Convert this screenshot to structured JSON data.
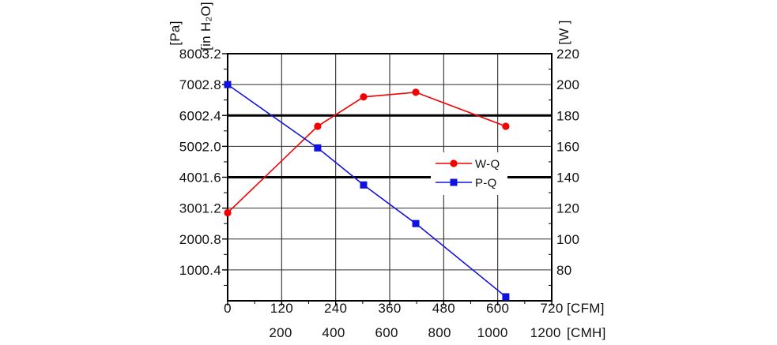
{
  "chart_data": {
    "type": "line",
    "title": "",
    "grid": true,
    "x_axis": {
      "unit": "[CFM]",
      "range": [
        0,
        720
      ],
      "ticks": [
        "0",
        "120",
        "240",
        "360",
        "480",
        "600",
        "720"
      ],
      "minor_step": 60
    },
    "x_axis_secondary": {
      "unit": "[CMH]",
      "ticks": [
        "200",
        "400",
        "600",
        "800",
        "1000",
        "1200"
      ],
      "cfm_per_cmh": 0.58858
    },
    "y_axis_left_pa": {
      "unit": "[Pa]",
      "range": [
        0,
        800
      ],
      "ticks": [
        "800",
        "700",
        "600",
        "500",
        "400",
        "300",
        "200",
        "100"
      ],
      "minor_step": 50
    },
    "y_axis_left_inh2o": {
      "unit": "[in H₂O]",
      "ticks": [
        "3.2",
        "2.8",
        "2.4",
        "2.0",
        "1.6",
        "1.2",
        "0.8",
        "0.4"
      ]
    },
    "y_axis_right_w": {
      "unit": "[W ]",
      "range": [
        60,
        220
      ],
      "ticks": [
        "220",
        "200",
        "180",
        "160",
        "140",
        "120",
        "100",
        "80"
      ],
      "minor_step": 10
    },
    "bold_gridlines_pa": [
      600,
      400
    ],
    "legend": {
      "position": "center-right",
      "entries": [
        "W-Q",
        "P-Q"
      ]
    },
    "series": [
      {
        "name": "W-Q",
        "y_axis": "W",
        "color": "#f40000",
        "marker": "circle",
        "x_cfm": [
          0,
          200,
          302,
          418,
          618
        ],
        "y_w": [
          117,
          173,
          192,
          195,
          173
        ]
      },
      {
        "name": "P-Q",
        "y_axis": "Pa",
        "color": "#1212e0",
        "marker": "square",
        "x_cfm": [
          0,
          200,
          302,
          418,
          618
        ],
        "y_pa": [
          700,
          495,
          375,
          250,
          13
        ]
      }
    ],
    "colors": {
      "grid": "#2e2e2e",
      "bold_grid": "#000000",
      "frame": "#000000",
      "text": "#111111",
      "background": "#ffffff"
    }
  }
}
